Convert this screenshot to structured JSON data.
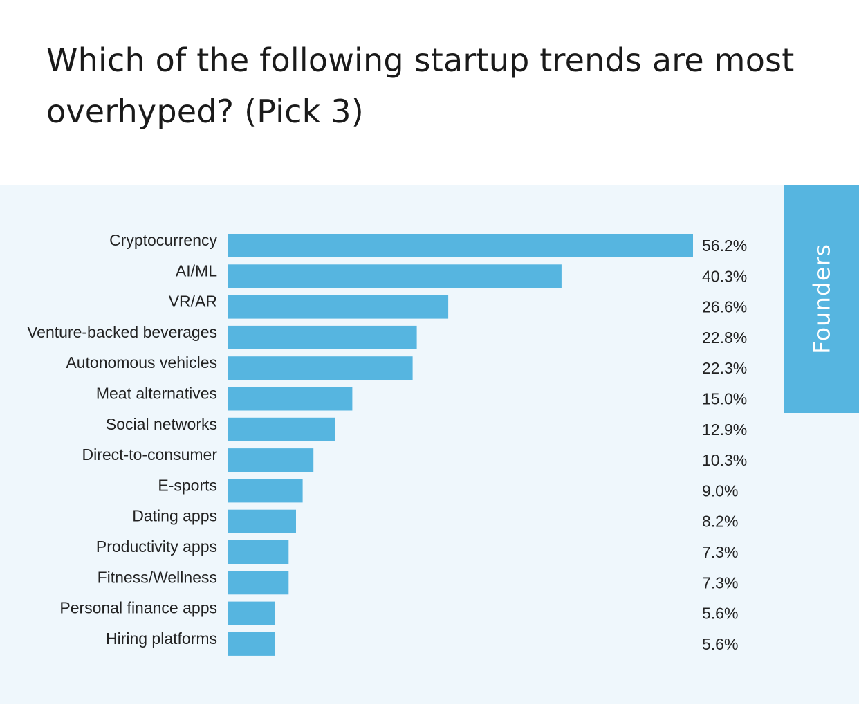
{
  "title": "Which of the following startup trends are most overhyped? (Pick 3)",
  "group_label": "Founders",
  "colors": {
    "bar": "#56b5e0",
    "panel_background": "#eff7fc",
    "tab_background": "#56b5e0",
    "text": "#222222"
  },
  "chart_data": {
    "type": "bar",
    "orientation": "horizontal",
    "title": "Which of the following startup trends are most overhyped? (Pick 3)",
    "xlabel": "",
    "ylabel": "",
    "xlim": [
      0,
      56.2
    ],
    "grid": false,
    "legend": "none",
    "categories": [
      "Cryptocurrency",
      "AI/ML",
      "VR/AR",
      "Venture-backed beverages",
      "Autonomous vehicles",
      "Meat alternatives",
      "Social networks",
      "Direct-to-consumer",
      "E-sports",
      "Dating apps",
      "Productivity apps",
      "Fitness/Wellness",
      "Personal finance apps",
      "Hiring platforms"
    ],
    "values": [
      56.2,
      40.3,
      26.6,
      22.8,
      22.3,
      15.0,
      12.9,
      10.3,
      9.0,
      8.2,
      7.3,
      7.3,
      5.6,
      5.6
    ],
    "value_labels": [
      "56.2%",
      "40.3%",
      "26.6%",
      "22.8%",
      "22.3%",
      "15.0%",
      "12.9%",
      "10.3%",
      "9.0%",
      "8.2%",
      "7.3%",
      "7.3%",
      "5.6%",
      "5.6%"
    ]
  }
}
